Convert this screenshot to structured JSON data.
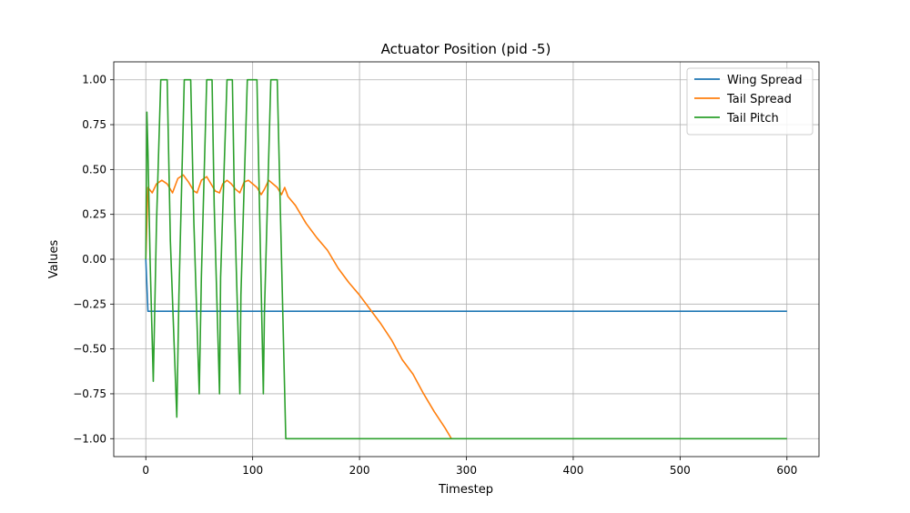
{
  "chart_data": {
    "type": "line",
    "title": "Actuator Position (pid -5)",
    "xlabel": "Timestep",
    "ylabel": "Values",
    "xlim": [
      -30,
      630
    ],
    "ylim": [
      -1.1,
      1.1
    ],
    "xticks": [
      0,
      100,
      200,
      300,
      400,
      500,
      600
    ],
    "yticks": [
      -1.0,
      -0.75,
      -0.5,
      -0.25,
      0.0,
      0.25,
      0.5,
      0.75,
      1.0
    ],
    "xtick_labels": [
      "0",
      "100",
      "200",
      "300",
      "400",
      "500",
      "600"
    ],
    "ytick_labels": [
      "−1.00",
      "−0.75",
      "−0.50",
      "−0.25",
      "0.00",
      "0.25",
      "0.50",
      "0.75",
      "1.00"
    ],
    "grid": true,
    "legend_position": "upper-right",
    "series": [
      {
        "name": "Wing Spread",
        "color": "#1f77b4",
        "x": [
          0,
          2,
          10,
          30,
          60,
          100,
          130,
          200,
          300,
          400,
          500,
          600
        ],
        "y": [
          0.0,
          -0.29,
          -0.29,
          -0.29,
          -0.29,
          -0.29,
          -0.29,
          -0.29,
          -0.29,
          -0.29,
          -0.29,
          -0.29
        ]
      },
      {
        "name": "Tail Spread",
        "color": "#ff7f0e",
        "x": [
          0,
          2,
          6,
          10,
          15,
          20,
          25,
          30,
          35,
          40,
          45,
          48,
          52,
          57,
          61,
          65,
          69,
          72,
          76,
          80,
          84,
          88,
          92,
          96,
          100,
          104,
          108,
          111,
          115,
          119,
          123,
          127,
          130,
          133,
          140,
          150,
          160,
          170,
          180,
          190,
          200,
          210,
          220,
          230,
          240,
          250,
          260,
          270,
          280,
          286
        ],
        "y": [
          0.0,
          0.4,
          0.37,
          0.42,
          0.44,
          0.42,
          0.37,
          0.45,
          0.47,
          0.43,
          0.38,
          0.37,
          0.44,
          0.46,
          0.42,
          0.38,
          0.37,
          0.42,
          0.44,
          0.42,
          0.39,
          0.37,
          0.43,
          0.44,
          0.42,
          0.4,
          0.36,
          0.39,
          0.44,
          0.42,
          0.4,
          0.36,
          0.4,
          0.35,
          0.3,
          0.2,
          0.12,
          0.05,
          -0.05,
          -0.13,
          -0.2,
          -0.28,
          -0.36,
          -0.45,
          -0.56,
          -0.64,
          -0.75,
          -0.85,
          -0.94,
          -1.0
        ]
      },
      {
        "name": "Tail Pitch",
        "color": "#2ca02c",
        "x": [
          0,
          1,
          2,
          4,
          7,
          10,
          14,
          16,
          20,
          23,
          29,
          31,
          36,
          38,
          42,
          45,
          50,
          52,
          57,
          59,
          62,
          64,
          69,
          70,
          76,
          78,
          81,
          83,
          88,
          89,
          95,
          98,
          104,
          105,
          110,
          111,
          117,
          118,
          123,
          127,
          131,
          135,
          200,
          300,
          400,
          500,
          600
        ],
        "y": [
          0.0,
          0.82,
          0.6,
          0.0,
          -0.68,
          0.2,
          1.0,
          1.0,
          1.0,
          0.1,
          -0.88,
          -0.2,
          1.0,
          1.0,
          1.0,
          0.2,
          -0.75,
          -0.1,
          1.0,
          1.0,
          1.0,
          0.3,
          -0.75,
          -0.1,
          1.0,
          1.0,
          1.0,
          0.3,
          -0.75,
          -0.2,
          1.0,
          1.0,
          1.0,
          0.7,
          -0.75,
          -0.3,
          1.0,
          1.0,
          1.0,
          0.0,
          -1.0,
          -1.0,
          -1.0,
          -1.0,
          -1.0,
          -1.0,
          -1.0
        ]
      }
    ]
  }
}
